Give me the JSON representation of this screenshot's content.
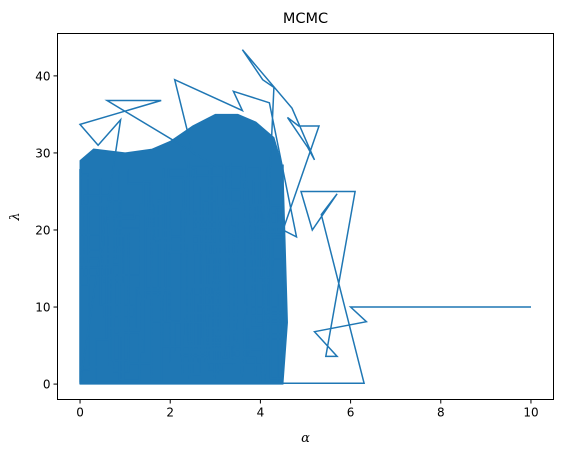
{
  "chart_data": {
    "type": "line",
    "title": "MCMC",
    "xlabel": "α",
    "ylabel": "λ",
    "xlim": [
      -0.5,
      10.5
    ],
    "ylim": [
      -2,
      45.5
    ],
    "grid": false,
    "xticks": [
      0,
      2,
      4,
      6,
      8,
      10
    ],
    "yticks": [
      0,
      10,
      20,
      30,
      40
    ],
    "xtick_labels": [
      "0",
      "2",
      "4",
      "6",
      "8",
      "10"
    ],
    "ytick_labels": [
      "0",
      "10",
      "20",
      "30",
      "40"
    ],
    "series": [
      {
        "color": "#1f77b4",
        "x": [
          10.0,
          6.0,
          6.35,
          5.2,
          5.7,
          5.45,
          6.1,
          4.9,
          5.15,
          5.7,
          5.35,
          6.3,
          4.0,
          4.3,
          4.05,
          3.6,
          4.7,
          5.2,
          5.05,
          4.6,
          4.85,
          5.3,
          4.5,
          4.8,
          4.2,
          3.4,
          3.6,
          2.1,
          2.5,
          3.1,
          0.6,
          1.8,
          0.0,
          0.4,
          0.9,
          0.0
        ],
        "y": [
          10.0,
          10.0,
          8.1,
          6.8,
          3.6,
          3.6,
          25.0,
          25.0,
          20.0,
          24.7,
          22.0,
          0.1,
          0.1,
          38.5,
          39.5,
          43.4,
          35.8,
          29.1,
          30.7,
          34.6,
          33.5,
          33.5,
          20.0,
          19.1,
          36.5,
          38.0,
          35.5,
          39.5,
          30.0,
          28.0,
          36.8,
          36.8,
          33.7,
          31.0,
          34.3,
          0.0
        ]
      }
    ]
  }
}
